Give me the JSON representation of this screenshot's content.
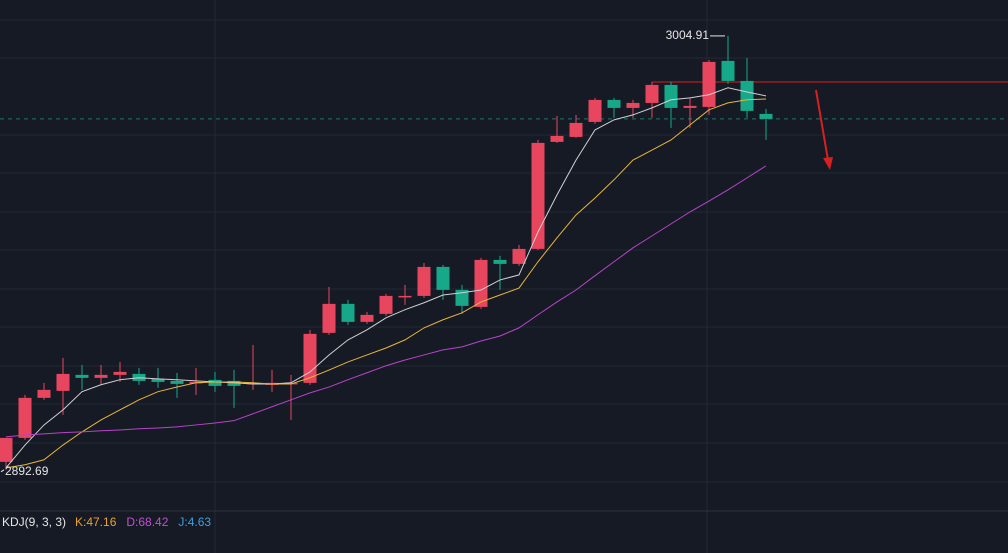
{
  "chart_data": {
    "type": "candlestick",
    "open": [
      2894.75,
      2900.95,
      2911.3,
      2913.11,
      2917.25,
      2916.47,
      2917.25,
      2917.5,
      2916.21,
      2915.69,
      2915.18,
      2915.95,
      2915.69,
      2914.92,
      2914.66,
      2914.92,
      2915.18,
      2928.11,
      2935.61,
      2930.95,
      2933.02,
      2937.41,
      2937.67,
      2945.17,
      2939.23,
      2934.83,
      2946.98,
      2945.95,
      2949.83,
      2977.5,
      2978.79,
      2982.67,
      2988.36,
      2986.29,
      2987.58,
      2992.24,
      2986.29,
      2986.55,
      2998.45,
      2993.27,
      2984.74
    ],
    "high": [
      2900.95,
      2912.07,
      2915.18,
      2921.64,
      2919.83,
      2919.83,
      2920.61,
      2919.06,
      2919.06,
      2917.76,
      2919.06,
      2918.02,
      2918.54,
      2925.0,
      2918.54,
      2917.25,
      2928.88,
      2940.0,
      2936.64,
      2933.54,
      2938.19,
      2940.52,
      2946.21,
      2945.69,
      2940.52,
      2947.5,
      2948.02,
      2950.86,
      2978.02,
      2984.22,
      2984.48,
      2988.88,
      2988.88,
      2988.36,
      2993.01,
      2993.01,
      2988.88,
      2998.7,
      3004.91,
      2999.22,
      2986.03
    ],
    "low": [
      2892.69,
      2900.44,
      2910.78,
      2906.9,
      2913.37,
      2914.66,
      2915.43,
      2914.66,
      2913.88,
      2911.3,
      2912.07,
      2912.85,
      2908.71,
      2913.37,
      2912.85,
      2905.61,
      2914.66,
      2927.59,
      2930.17,
      2930.43,
      2932.5,
      2935.35,
      2937.16,
      2936.64,
      2933.02,
      2934.31,
      2939.23,
      2945.43,
      2949.57,
      2977.24,
      2978.53,
      2982.15,
      2983.71,
      2983.71,
      2983.71,
      2981.12,
      2981.12,
      2984.48,
      2992.5,
      2983.71,
      2978.02
    ],
    "close": [
      2900.95,
      2911.3,
      2913.37,
      2917.5,
      2916.47,
      2917.25,
      2918.02,
      2915.69,
      2915.43,
      2914.92,
      2915.43,
      2914.4,
      2914.4,
      2915.18,
      2915.18,
      2915.18,
      2927.85,
      2935.61,
      2930.95,
      2932.76,
      2937.67,
      2937.67,
      2945.17,
      2939.23,
      2935.09,
      2946.98,
      2945.95,
      2949.83,
      2977.24,
      2979.05,
      2982.41,
      2988.36,
      2986.29,
      2987.58,
      2992.24,
      2986.29,
      2986.81,
      2998.19,
      2993.27,
      2985.52,
      2983.45
    ],
    "up_color": "#e8465e",
    "down_color": "#17a88a",
    "lines": [
      {
        "color": "#d0d0d0",
        "values": [
          2893.2,
          2899.1,
          2904.3,
          2908.2,
          2912.9,
          2914.7,
          2916.0,
          2916.5,
          2916.2,
          2916.0,
          2915.7,
          2915.4,
          2915.2,
          2914.9,
          2914.9,
          2915.2,
          2918.0,
          2922.4,
          2926.3,
          2928.9,
          2932.0,
          2934.1,
          2935.9,
          2937.9,
          2938.5,
          2939.2,
          2941.8,
          2943.1,
          2954.2,
          2963.8,
          2972.8,
          2980.6,
          2983.2,
          2984.5,
          2986.3,
          2988.4,
          2988.9,
          2989.7,
          2991.5,
          2990.4,
          2989.4
        ]
      },
      {
        "color": "#e8b53a",
        "values": [
          2893.2,
          2894.0,
          2895.3,
          2899.1,
          2902.5,
          2905.6,
          2908.2,
          2910.8,
          2912.9,
          2914.1,
          2915.2,
          2915.4,
          2915.4,
          2915.2,
          2914.9,
          2914.9,
          2916.5,
          2918.5,
          2920.6,
          2922.4,
          2924.2,
          2926.3,
          2929.4,
          2931.5,
          2933.3,
          2936.1,
          2937.9,
          2939.7,
          2946.5,
          2952.7,
          2958.6,
          2963.0,
          2967.7,
          2972.8,
          2975.4,
          2978.0,
          2981.9,
          2985.8,
          2987.6,
          2988.4,
          2988.6
        ]
      },
      {
        "color": "#b844c8",
        "values": [
          2901.2,
          2901.7,
          2902.0,
          2902.3,
          2902.5,
          2902.8,
          2903.0,
          2903.3,
          2903.5,
          2903.8,
          2904.3,
          2904.8,
          2905.4,
          2907.2,
          2909.0,
          2910.8,
          2912.6,
          2914.1,
          2916.0,
          2917.8,
          2919.6,
          2921.1,
          2922.4,
          2923.7,
          2924.5,
          2926.0,
          2927.3,
          2929.4,
          2932.8,
          2936.1,
          2939.2,
          2942.9,
          2946.5,
          2950.1,
          2953.2,
          2956.3,
          2959.4,
          2962.2,
          2965.1,
          2968.2,
          2971.3
        ]
      }
    ],
    "max_label": 3004.91,
    "min_label": 2892.69,
    "hline": 2993.0,
    "hline_color": "#d82020",
    "ylim": [
      2882.3,
      3014.2
    ],
    "indicator": {
      "title": "KDJ(9, 3, 3)",
      "items": [
        {
          "label": "K:47.16",
          "color": "#f0a030"
        },
        {
          "label": "D:68.42",
          "color": "#c050d0"
        },
        {
          "label": "J:4.63",
          "color": "#3aa0e0"
        }
      ]
    }
  }
}
